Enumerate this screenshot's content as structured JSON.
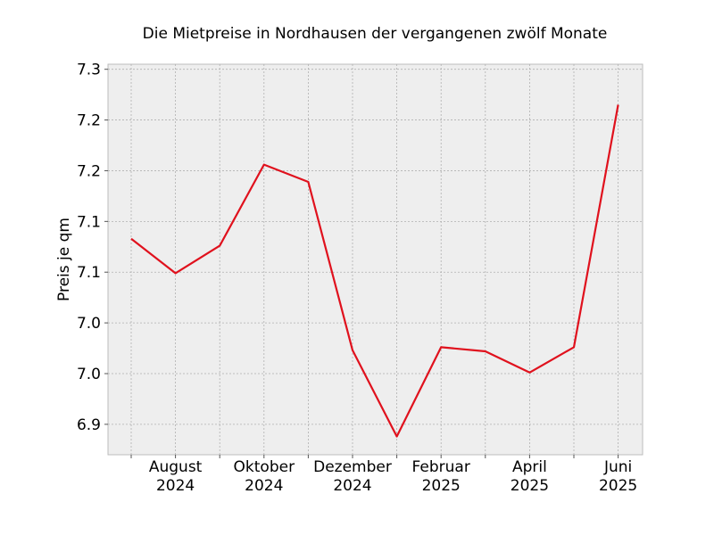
{
  "chart_data": {
    "type": "line",
    "title": "Die Mietpreise in Nordhausen der vergangenen zwölf Monate",
    "xlabel": "",
    "ylabel": "Preis je qm",
    "x": [
      "2024-07",
      "2024-08",
      "2024-09",
      "2024-10",
      "2024-11",
      "2024-12",
      "2025-01",
      "2025-02",
      "2025-03",
      "2025-04",
      "2025-05",
      "2025-06"
    ],
    "x_tick_labels": [
      {
        "x": "2024-08",
        "line1": "August",
        "line2": "2024"
      },
      {
        "x": "2024-10",
        "line1": "Oktober",
        "line2": "2024"
      },
      {
        "x": "2024-12",
        "line1": "Dezember",
        "line2": "2024"
      },
      {
        "x": "2025-02",
        "line1": "Februar",
        "line2": "2025"
      },
      {
        "x": "2025-04",
        "line1": "April",
        "line2": "2025"
      },
      {
        "x": "2025-06",
        "line1": "Juni",
        "line2": "2025"
      }
    ],
    "y_ticks": [
      6.925,
      6.975,
      7.025,
      7.075,
      7.125,
      7.175,
      7.225,
      7.275
    ],
    "y_tick_labels": [
      "6.9",
      "7.0",
      "7.0",
      "7.1",
      "7.1",
      "7.2",
      "7.2",
      "7.3"
    ],
    "ylim": [
      6.895,
      7.28
    ],
    "series": [
      {
        "color": "#e0111d",
        "values": [
          7.108,
          7.074,
          7.101,
          7.181,
          7.164,
          6.998,
          6.913,
          7.001,
          6.997,
          6.976,
          7.001,
          7.24
        ]
      }
    ],
    "grid": true,
    "background": "#eeeeee"
  }
}
